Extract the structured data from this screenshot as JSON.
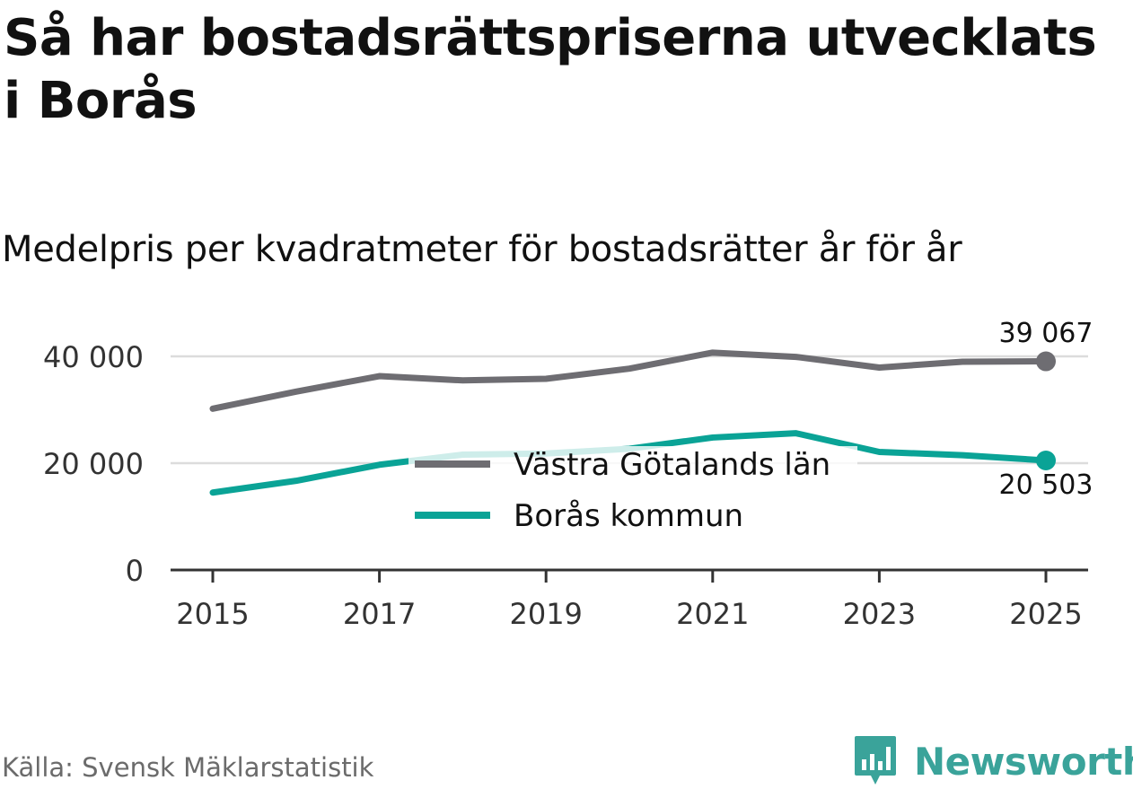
{
  "title": "Så har bostadsrättspriserna utvecklats i Borås",
  "subtitle": "Medelpris per kvadratmeter för bostadsrätter år för år",
  "source": "Källa: Svensk Mäklarstatistik",
  "brand": {
    "name": "Newsworthy",
    "icon": "newsworthy-logo-icon",
    "color": "#3aa39a"
  },
  "chart_data": {
    "type": "line",
    "x": [
      2015,
      2016,
      2017,
      2018,
      2019,
      2020,
      2021,
      2022,
      2023,
      2024,
      2025
    ],
    "series": [
      {
        "name": "Västra Götalands län",
        "color": "#6e6d72",
        "values": [
          30200,
          33400,
          36300,
          35500,
          35800,
          37700,
          40700,
          39900,
          37900,
          39000,
          39067
        ],
        "end_label": "39 067"
      },
      {
        "name": "Borås kommun",
        "color": "#0aa396",
        "values": [
          14500,
          16700,
          19700,
          21600,
          21800,
          22700,
          24800,
          25600,
          22100,
          21500,
          20503
        ],
        "end_label": "20 503"
      }
    ],
    "xticks": [
      "2015",
      "2017",
      "2019",
      "2021",
      "2023",
      "2025"
    ],
    "yticks": [
      "0",
      "20 000",
      "40 000"
    ],
    "ylim": [
      0,
      40000
    ],
    "xlim": [
      2015,
      2025
    ],
    "legend": "center",
    "grid": true,
    "xlabel": "",
    "ylabel": ""
  }
}
